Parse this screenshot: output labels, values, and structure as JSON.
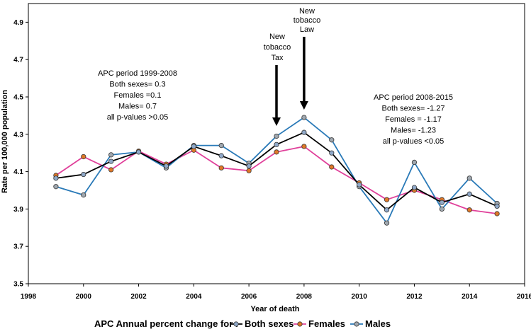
{
  "chart_data": {
    "type": "line",
    "xlabel": "Year of death",
    "ylabel": "Rate per 100,000 population",
    "xlim": [
      1998,
      2016
    ],
    "ylim": [
      3.5,
      5.0
    ],
    "x_ticks": [
      "1998",
      "2000",
      "2002",
      "2004",
      "2006",
      "2008",
      "2010",
      "2012",
      "2014",
      "2016"
    ],
    "y_ticks": [
      "3.5",
      "3.7",
      "3.9",
      "4.1",
      "4.3",
      "4.5",
      "4.7",
      "4.9"
    ],
    "grid": false,
    "x": [
      1999,
      2000,
      2001,
      2002,
      2003,
      2004,
      2005,
      2006,
      2007,
      2008,
      2009,
      2010,
      2011,
      2012,
      2013,
      2014,
      2015
    ],
    "series": [
      {
        "name": "Both sexes",
        "color": "#000000",
        "marker_color": "#8fa8c8",
        "values": [
          4.065,
          4.085,
          4.155,
          4.205,
          4.13,
          4.235,
          4.185,
          4.13,
          4.245,
          4.31,
          4.2,
          4.03,
          3.895,
          4.015,
          3.935,
          3.98,
          3.915
        ]
      },
      {
        "name": "Females",
        "color": "#e0409a",
        "marker_color": "#e07828",
        "values": [
          4.08,
          4.18,
          4.11,
          4.21,
          4.14,
          4.215,
          4.12,
          4.105,
          4.205,
          4.235,
          4.125,
          4.04,
          3.95,
          4.0,
          3.95,
          3.895,
          3.875
        ]
      },
      {
        "name": "Males",
        "color": "#2a7ab8",
        "marker_color": "#a0a8b0",
        "values": [
          4.02,
          3.975,
          4.19,
          4.205,
          4.12,
          4.24,
          4.24,
          4.145,
          4.29,
          4.39,
          4.27,
          4.02,
          3.825,
          4.15,
          3.9,
          4.065,
          3.93
        ]
      }
    ],
    "annotations": [
      {
        "lines": [
          "APC period 1999-2008",
          "Both sexes= 0.3",
          "Females =0.1",
          "Males= 0.7",
          "all p-values >0.05"
        ]
      },
      {
        "lines": [
          "APC period 2008-2015",
          "Both sexes= -1.27",
          "Females = -1.17",
          "Males= -1.23",
          "all p-values <0.05"
        ]
      },
      {
        "lines": [
          "New",
          "tobacco",
          "Tax"
        ],
        "arrow_x": 2007
      },
      {
        "lines": [
          "New",
          "tobacco",
          "Law"
        ],
        "arrow_x": 2008
      }
    ],
    "legend": {
      "prefix": "APC Annual percent change for :",
      "placement": "bottom"
    }
  }
}
